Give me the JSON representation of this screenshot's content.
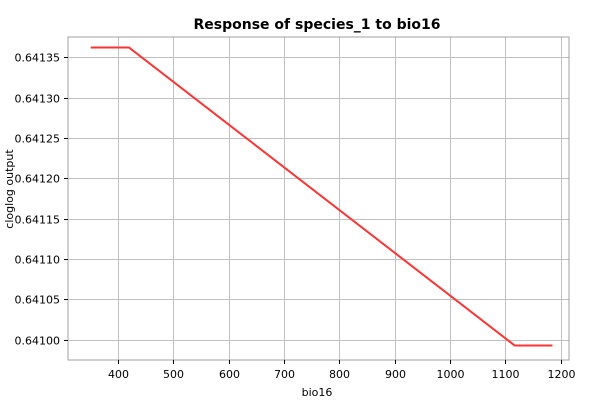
{
  "chart_data": {
    "type": "line",
    "title": "Response of species_1 to bio16",
    "xlabel": "bio16",
    "ylabel": "cloglog output",
    "xlim": [
      310,
      1215
    ],
    "ylim": [
      0.640975,
      0.641375
    ],
    "x_ticks": [
      400,
      500,
      600,
      700,
      800,
      900,
      1000,
      1100,
      1200
    ],
    "x_tick_labels": [
      "400",
      "500",
      "600",
      "700",
      "800",
      "900",
      "1000",
      "1100",
      "1200"
    ],
    "y_ticks": [
      0.641,
      0.64105,
      0.6411,
      0.64115,
      0.6412,
      0.64125,
      0.6413,
      0.64135
    ],
    "y_tick_labels": [
      "0.64100",
      "0.64105",
      "0.64110",
      "0.64115",
      "0.64120",
      "0.64125",
      "0.64130",
      "0.64135"
    ],
    "grid": true,
    "legend": "none",
    "series": [
      {
        "color": "#ff3333",
        "x": [
          351,
          420,
          1117,
          1185
        ],
        "y": [
          0.641362,
          0.641362,
          0.640993,
          0.640993
        ]
      }
    ]
  }
}
